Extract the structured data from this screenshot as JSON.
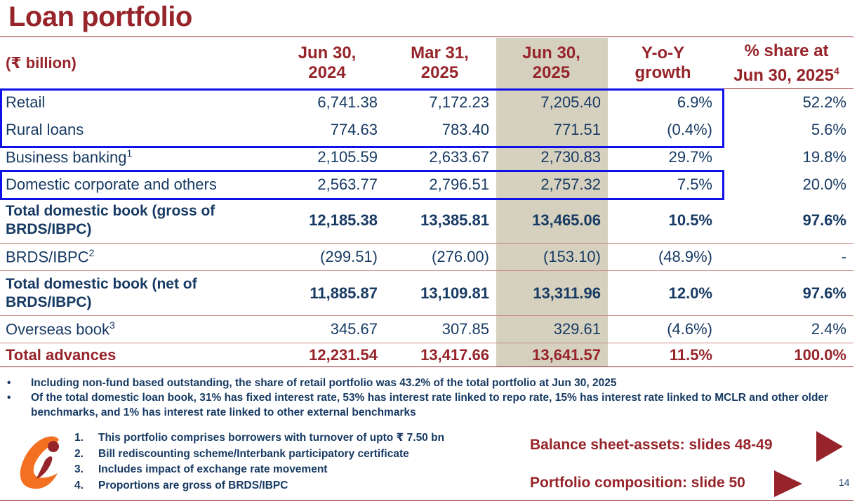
{
  "title": "Loan portfolio",
  "table": {
    "unit": "(₹ billion)",
    "columns": [
      {
        "line1": "Jun 30,",
        "line2": "2024"
      },
      {
        "line1": "Mar 31,",
        "line2": "2025"
      },
      {
        "line1": "Jun 30,",
        "line2": "2025"
      },
      {
        "line1": "Y-o-Y",
        "line2": "growth"
      },
      {
        "line1": "% share at",
        "line2": "Jun 30, 2025",
        "sup": "4"
      }
    ],
    "rows": [
      {
        "label": "Retail",
        "sup": "",
        "values": [
          "6,741.38",
          "7,172.23",
          "7,205.40",
          "6.9%",
          "52.2%"
        ]
      },
      {
        "label": "Rural loans",
        "sup": "",
        "values": [
          "774.63",
          "783.40",
          "771.51",
          "(0.4%)",
          "5.6%"
        ]
      },
      {
        "label": "Business banking",
        "sup": "1",
        "values": [
          "2,105.59",
          "2,633.67",
          "2,730.83",
          "29.7%",
          "19.8%"
        ]
      },
      {
        "label": "Domestic corporate and others",
        "sup": "",
        "values": [
          "2,563.77",
          "2,796.51",
          "2,757.32",
          "7.5%",
          "20.0%"
        ]
      },
      {
        "label": "Total domestic book (gross of BRDS/IBPC)",
        "sup": "",
        "values": [
          "12,185.38",
          "13,385.81",
          "13,465.06",
          "10.5%",
          "97.6%"
        ]
      },
      {
        "label": "BRDS/IBPC",
        "sup": "2",
        "values": [
          "(299.51)",
          "(276.00)",
          "(153.10)",
          "(48.9%)",
          "-"
        ]
      },
      {
        "label": "Total domestic book (net of BRDS/IBPC)",
        "sup": "",
        "values": [
          "11,885.87",
          "13,109.81",
          "13,311.96",
          "12.0%",
          "97.6%"
        ]
      },
      {
        "label": "Overseas book",
        "sup": "3",
        "values": [
          "345.67",
          "307.85",
          "329.61",
          "(4.6%)",
          "2.4%"
        ]
      },
      {
        "label": "Total advances",
        "sup": "",
        "values": [
          "12,231.54",
          "13,417.66",
          "13,641.57",
          "11.5%",
          "100.0%"
        ]
      }
    ]
  },
  "notes": [
    "Including non-fund based outstanding, the share of retail portfolio was 43.2% of the total portfolio at Jun 30, 2025",
    "Of the total domestic loan book, 31% has fixed interest rate, 53% has interest rate linked to repo rate, 15% has interest rate linked to MCLR and other older benchmarks, and 1% has interest rate linked to other external benchmarks"
  ],
  "footnotes": [
    {
      "num": "1.",
      "text": "This portfolio comprises borrowers with turnover of upto ₹ 7.50 bn"
    },
    {
      "num": "2.",
      "text": "Bill rediscounting scheme/Interbank participatory certificate"
    },
    {
      "num": "3.",
      "text": "Includes impact of exchange rate movement"
    },
    {
      "num": "4.",
      "text": "Proportions are gross of BRDS/IBPC"
    }
  ],
  "nav": {
    "balance_sheet": "Balance sheet-assets: slides 48-49",
    "portfolio": "Portfolio composition: slide 50"
  },
  "page_number": "14",
  "colors": {
    "brand": "#96242a",
    "text": "#173a63",
    "highlight": "#d6d1bf",
    "box": "#1010e8",
    "logo_orange": "#f37021"
  }
}
